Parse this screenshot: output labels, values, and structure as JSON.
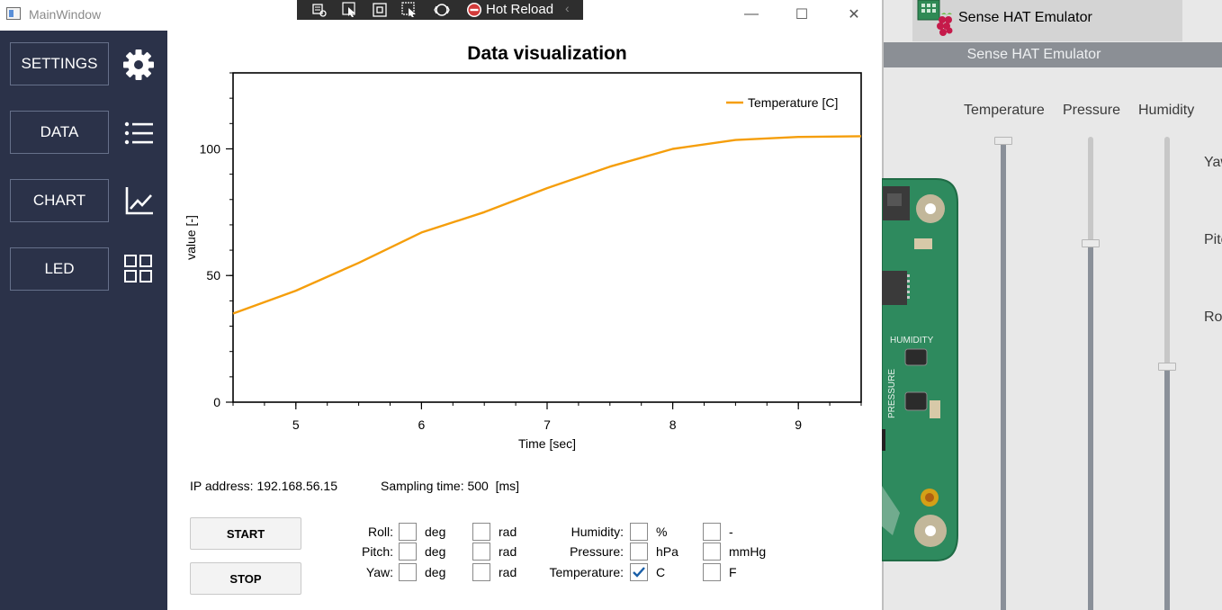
{
  "main_window": {
    "title": "MainWindow",
    "titlebar_buttons": {
      "minimize": "—",
      "maximize": "☐",
      "close": "✕"
    }
  },
  "hot_reload": {
    "label": "Hot Reload"
  },
  "sidebar": {
    "items": [
      {
        "label": "SETTINGS",
        "icon": "gear-icon"
      },
      {
        "label": "DATA",
        "icon": "list-icon"
      },
      {
        "label": "CHART",
        "icon": "chart-line-icon"
      },
      {
        "label": "LED",
        "icon": "grid-icon"
      }
    ]
  },
  "chart_data": {
    "type": "line",
    "title": "Data visualization",
    "xlabel": "Time [sec]",
    "ylabel": "value [-]",
    "xlim": [
      4.5,
      9.5
    ],
    "ylim": [
      0,
      130
    ],
    "x_ticks": [
      5,
      6,
      7,
      8,
      9
    ],
    "y_ticks": [
      0,
      50,
      100
    ],
    "legend": "top-right",
    "series": [
      {
        "name": "Temperature [C]",
        "color": "#f59e0b",
        "x": [
          4.5,
          5.0,
          5.5,
          6.0,
          6.5,
          7.0,
          7.5,
          8.0,
          8.5,
          9.0,
          9.5
        ],
        "y": [
          35,
          44,
          55,
          67,
          75,
          84.5,
          93,
          100,
          103.5,
          104.7,
          105
        ]
      }
    ]
  },
  "status": {
    "ip_label": "IP address:",
    "ip_value": "192.168.56.15",
    "sampling_label": "Sampling time:",
    "sampling_value": "500",
    "sampling_unit": "[ms]"
  },
  "buttons": {
    "start": "START",
    "stop": "STOP"
  },
  "angles": {
    "rows": [
      {
        "label": "Roll:",
        "deg_checked": false,
        "rad_checked": false
      },
      {
        "label": "Pitch:",
        "deg_checked": false,
        "rad_checked": false
      },
      {
        "label": "Yaw:",
        "deg_checked": false,
        "rad_checked": false
      }
    ],
    "unit_deg": "deg",
    "unit_rad": "rad"
  },
  "env": {
    "rows": [
      {
        "label": "Humidity:",
        "unit1": "%",
        "unit2": "-",
        "c1": false,
        "c2": false
      },
      {
        "label": "Pressure:",
        "unit1": "hPa",
        "unit2": "mmHg",
        "c1": false,
        "c2": false
      },
      {
        "label": "Temperature:",
        "unit1": "C",
        "unit2": "F",
        "c1": true,
        "c2": false
      }
    ]
  },
  "emulator": {
    "tab_title": "Sense HAT Emulator",
    "window_title": "Sense HAT Emulator",
    "sliders": [
      {
        "label": "Temperature",
        "level": 1.0
      },
      {
        "label": "Pressure",
        "level": 0.74
      },
      {
        "label": "Humidity",
        "level": 0.43
      }
    ],
    "edge_labels": [
      "Yaw",
      "Pitch",
      "Roll"
    ],
    "board_labels": {
      "humidity": "HUMIDITY",
      "pressure": "PRESSURE"
    }
  }
}
